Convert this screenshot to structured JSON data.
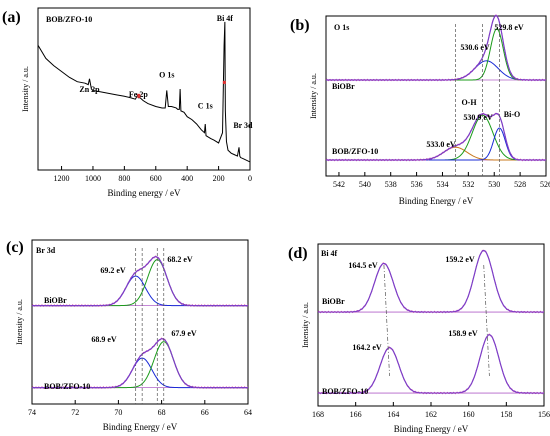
{
  "chart_data": [
    {
      "panel": "(a)",
      "type": "line",
      "sample_label": "BOB/ZFO-10",
      "xlabel": "Binding energy / eV",
      "ylabel": "Intensity / a.u.",
      "xlim": [
        1350,
        0
      ],
      "ylim": [
        0,
        100
      ],
      "xticks": [
        1200,
        1000,
        800,
        600,
        400,
        200,
        0
      ],
      "annotations": [
        {
          "text": "Zn 2p",
          "x": 1022
        },
        {
          "text": "Fe 2p",
          "x": 711
        },
        {
          "text": "O 1s",
          "x": 530
        },
        {
          "text": "C 1s",
          "x": 285
        },
        {
          "text": "Bi 4f",
          "x": 160
        },
        {
          "text": "Br 3d",
          "x": 68
        }
      ],
      "series": [
        {
          "color": "#000000",
          "x": [
            1350,
            1300,
            1250,
            1200,
            1150,
            1100,
            1050,
            1030,
            1022,
            1010,
            1000,
            950,
            900,
            850,
            800,
            760,
            730,
            715,
            711,
            700,
            680,
            650,
            600,
            560,
            540,
            530,
            520,
            500,
            470,
            460,
            450,
            445,
            440,
            420,
            400,
            370,
            340,
            310,
            290,
            285,
            280,
            250,
            230,
            200,
            175,
            165,
            160,
            157,
            150,
            140,
            120,
            100,
            80,
            70,
            65,
            60,
            40,
            20,
            0
          ],
          "y": [
            80,
            71,
            66,
            62,
            58,
            55,
            54,
            53,
            57,
            50,
            49,
            48,
            47,
            46,
            45,
            44,
            43,
            46,
            44,
            44,
            42,
            40,
            38,
            37,
            37,
            49,
            38,
            38,
            37,
            36,
            36,
            50,
            35,
            34,
            31,
            29,
            26,
            22,
            20,
            26,
            18,
            16,
            15,
            13,
            20,
            80,
            96,
            35,
            14,
            8,
            6,
            5,
            4,
            10,
            4,
            3,
            2,
            1,
            0
          ]
        }
      ]
    },
    {
      "panel": "(b)",
      "type": "line",
      "title": "O 1s",
      "xlabel": "Binding Energy / eV",
      "ylabel": "Intensity / a.u.",
      "xlim": [
        543,
        526
      ],
      "ylim": [
        0,
        100
      ],
      "xticks": [
        542,
        540,
        538,
        536,
        534,
        532,
        530,
        528,
        526
      ],
      "spectra": [
        {
          "label": "BiOBr",
          "offset": 60,
          "peaks": [
            {
              "label": "530.6 eV",
              "center": 530.6,
              "height": 12
            },
            {
              "label": "529.8 eV",
              "center": 529.8,
              "height": 32
            }
          ]
        },
        {
          "label": "BOB/ZFO-10",
          "offset": 10,
          "peaks": [
            {
              "label": "533.0 eV",
              "center": 533.0,
              "height": 8
            },
            {
              "label": "530.9 eV",
              "center": 530.9,
              "height": 28
            },
            {
              "label": "Bi-O",
              "center": 529.6,
              "height": 20
            }
          ]
        }
      ],
      "extra_labels": [
        "O-H",
        "Bi-O"
      ]
    },
    {
      "panel": "(c)",
      "type": "line",
      "title": "Br 3d",
      "xlabel": "Binding Energy / eV",
      "ylabel": "Intensity / a.u.",
      "xlim": [
        74,
        64
      ],
      "ylim": [
        0,
        100
      ],
      "xticks": [
        74,
        72,
        70,
        68,
        66,
        64
      ],
      "spectra": [
        {
          "label": "BiOBr",
          "offset": 60,
          "peaks": [
            {
              "label": "69.2 eV",
              "center": 69.2,
              "height": 18
            },
            {
              "label": "68.2 eV",
              "center": 68.2,
              "height": 28
            }
          ]
        },
        {
          "label": "BOB/ZFO-10",
          "offset": 10,
          "peaks": [
            {
              "label": "68.9 eV",
              "center": 68.9,
              "height": 18
            },
            {
              "label": "67.9 eV",
              "center": 67.9,
              "height": 28
            }
          ]
        }
      ]
    },
    {
      "panel": "(d)",
      "type": "line",
      "title": "Bi 4f",
      "xlabel": "Binding Energy / eV",
      "ylabel": "Intensity / a.u.",
      "xlim": [
        168,
        156
      ],
      "ylim": [
        0,
        100
      ],
      "xticks": [
        168,
        166,
        164,
        162,
        160,
        158,
        156
      ],
      "spectra": [
        {
          "label": "BiOBr",
          "offset": 58,
          "peaks": [
            {
              "label": "164.5 eV",
              "center": 164.5,
              "height": 30
            },
            {
              "label": "159.2 eV",
              "center": 159.2,
              "height": 38
            }
          ]
        },
        {
          "label": "BOB/ZFO-10",
          "offset": 8,
          "peaks": [
            {
              "label": "164.2 eV",
              "center": 164.2,
              "height": 28
            },
            {
              "label": "158.9 eV",
              "center": 158.9,
              "height": 36
            }
          ]
        }
      ]
    }
  ],
  "panel_labels": [
    "(a)",
    "(b)",
    "(c)",
    "(d)"
  ],
  "colors": {
    "envelope": "#7b3fc8",
    "raw": "#e040a0",
    "blue": "#1a2bd6",
    "green": "#1a9b1a",
    "orange": "#c8781e",
    "baseline": "#b060c8"
  }
}
